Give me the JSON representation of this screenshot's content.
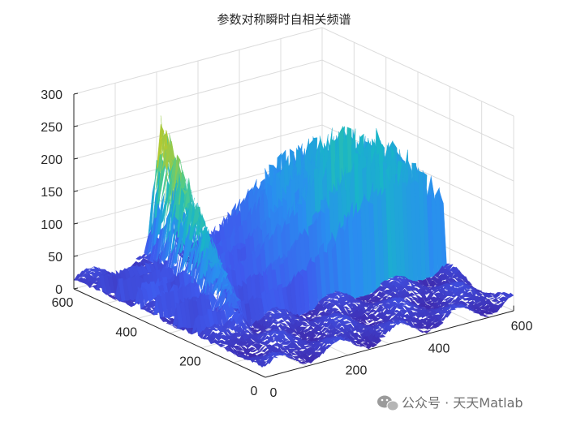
{
  "chart_data": {
    "type": "surface",
    "title": "参数对称瞬时自相关频谱",
    "xlabel": "",
    "ylabel": "",
    "zlabel": "",
    "xlim": [
      0,
      600
    ],
    "ylim": [
      0,
      600
    ],
    "zlim": [
      0,
      300
    ],
    "x_ticks": [
      "0",
      "200",
      "400",
      "600"
    ],
    "y_ticks": [
      "0",
      "200",
      "400",
      "600"
    ],
    "z_ticks": [
      "0",
      "50",
      "100",
      "150",
      "200",
      "250",
      "300"
    ],
    "grid": true,
    "colormap": "parula",
    "colors": [
      "#3e26a8",
      "#3f59ed",
      "#2a8ef0",
      "#19b5c8",
      "#4ccb8d",
      "#b6c92f",
      "#f0c63a",
      "#f9fb15"
    ],
    "ridges": [
      {
        "x_from": 0,
        "x_to": 600,
        "y": 520,
        "peak": 160
      },
      {
        "x_from": 0,
        "x_to": 600,
        "y": 460,
        "peak": 190
      },
      {
        "x_from": 0,
        "x_to": 600,
        "y": 400,
        "peak": 215
      },
      {
        "x_from": 0,
        "x_to": 600,
        "y": 340,
        "peak": 240
      },
      {
        "x_from": 0,
        "x_to": 600,
        "y": 280,
        "peak": 225
      },
      {
        "x_from": 0,
        "x_to": 600,
        "y": 220,
        "peak": 200
      }
    ],
    "ridge_peak_x": 480,
    "front_ridge": {
      "x_from": 0,
      "x_to": 600,
      "y_from": 120,
      "y_to": 600,
      "peak_at_y": 600,
      "peak": 235
    },
    "plateau_level": 25
  },
  "watermark": {
    "text": "公众号 · 天天Matlab",
    "icon": "wechat-icon"
  }
}
